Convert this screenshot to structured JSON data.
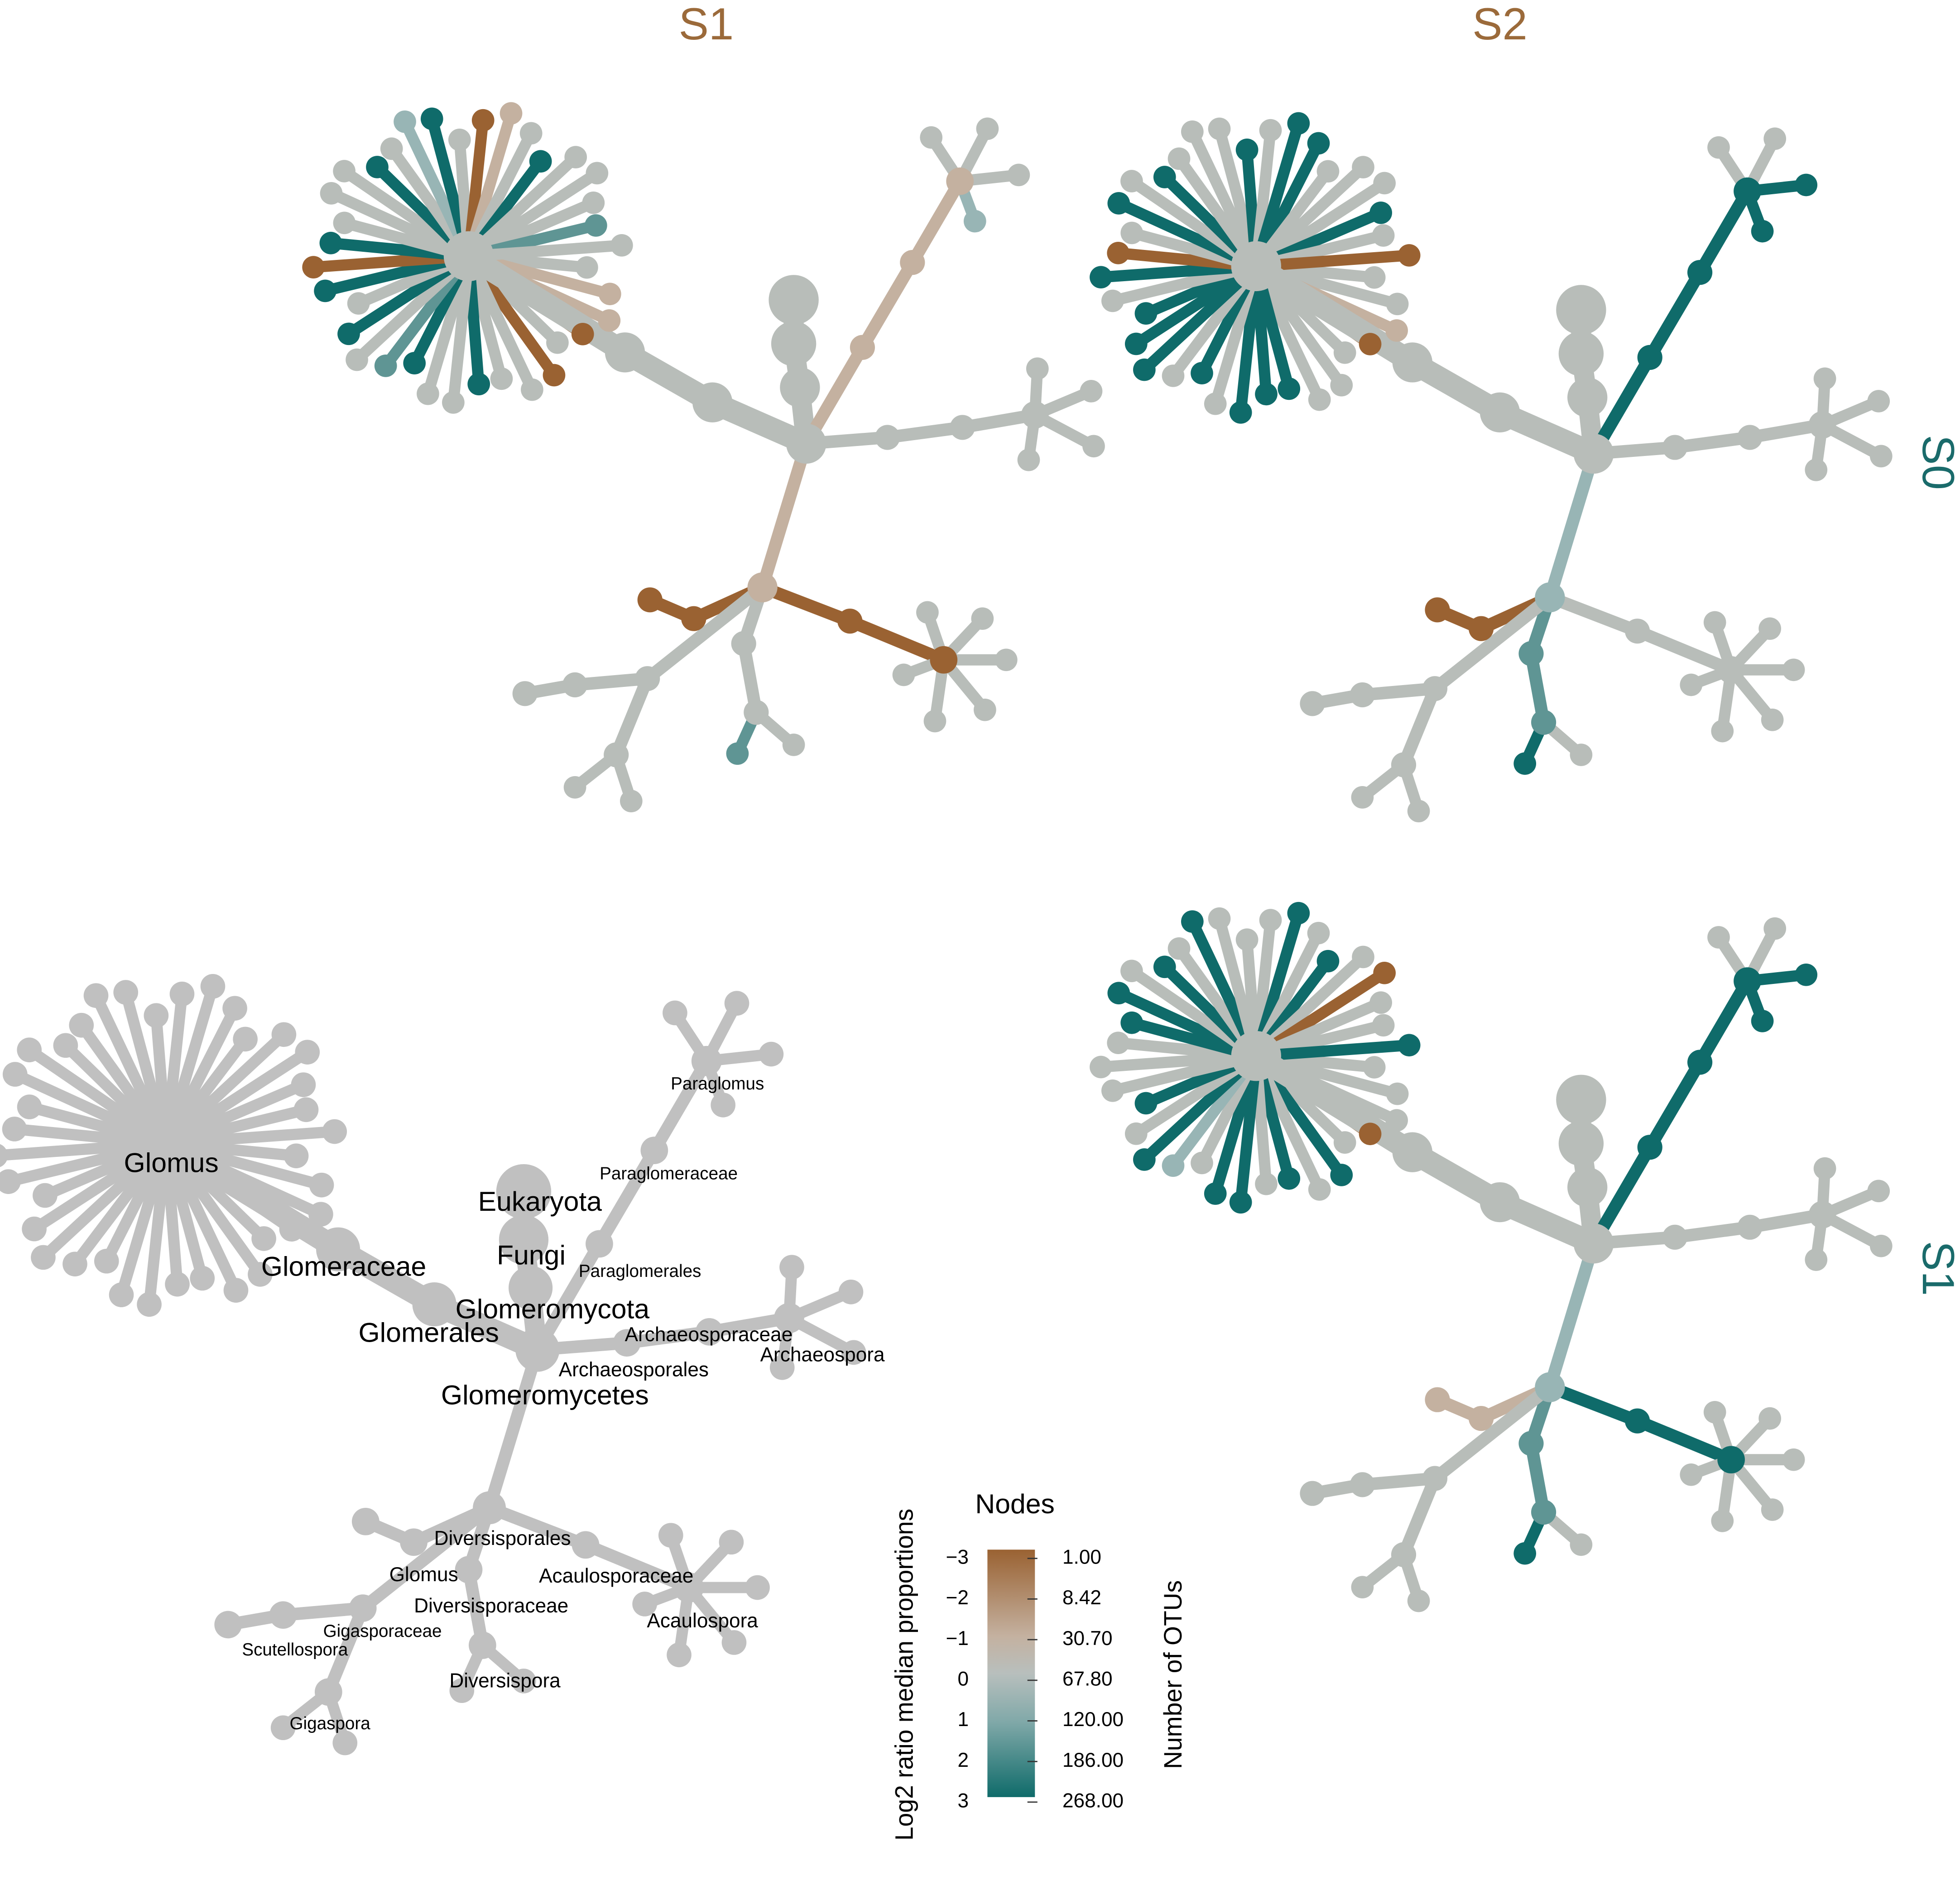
{
  "columns": [
    "S1",
    "S2"
  ],
  "rows": [
    "S0",
    "S1"
  ],
  "taxa": [
    "Glomus",
    "Glomeraceae",
    "Eukaryota",
    "Fungi",
    "Paraglomerales",
    "Paraglomeraceae",
    "Paraglomus",
    "Glomeromycota",
    "Glomerales",
    "Archaeosporaceae",
    "Archaeospora",
    "Archaeosporales",
    "Glomeromycetes",
    "Diversisporales",
    "Glomus",
    "Acaulosporaceae",
    "Diversisporaceae",
    "Acaulospora",
    "Gigasporaceae",
    "Scutellospora",
    "Diversispora",
    "Gigaspora"
  ],
  "legend": {
    "title": "Nodes",
    "color_label": "Log2 ratio median proportions",
    "size_label": "Number of OTUs",
    "color_ticks": [
      "−3",
      "−2",
      "−1",
      "0",
      "1",
      "2",
      "3"
    ],
    "size_ticks": [
      "1.00",
      "8.42",
      "30.70",
      "67.80",
      "120.00",
      "186.00",
      "268.00"
    ]
  }
}
